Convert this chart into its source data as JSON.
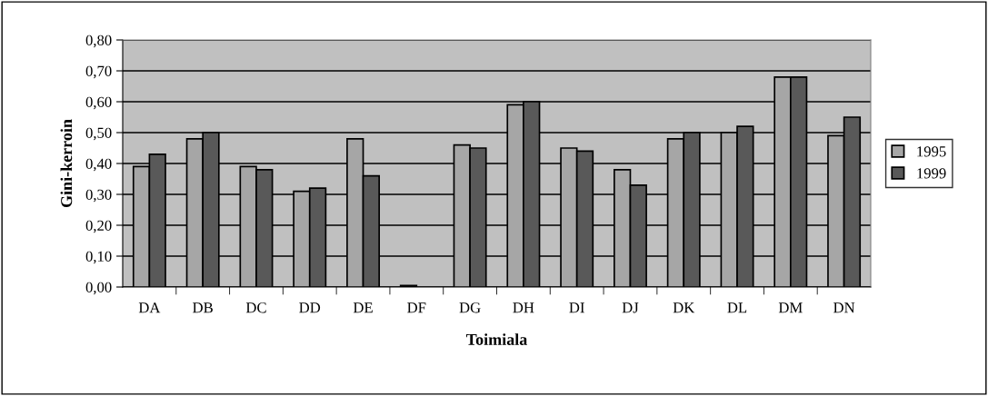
{
  "chart_data": {
    "type": "bar",
    "xlabel": "Toimiala",
    "ylabel": "Gini-kerroin",
    "categories": [
      "DA",
      "DB",
      "DC",
      "DD",
      "DE",
      "DF",
      "DG",
      "DH",
      "DI",
      "DJ",
      "DK",
      "DL",
      "DM",
      "DN"
    ],
    "series": [
      {
        "name": "1995",
        "color": "#a6a6a6",
        "values": [
          0.39,
          0.48,
          0.39,
          0.31,
          0.48,
          0.005,
          0.46,
          0.59,
          0.45,
          0.38,
          0.48,
          0.5,
          0.68,
          0.49
        ]
      },
      {
        "name": "1999",
        "color": "#595959",
        "values": [
          0.43,
          0.5,
          0.38,
          0.32,
          0.36,
          null,
          0.45,
          0.6,
          0.44,
          0.33,
          0.5,
          0.52,
          0.68,
          0.55
        ]
      }
    ],
    "ylim": [
      0,
      0.8
    ],
    "yticks": [
      {
        "value": 0,
        "label": "0,00"
      },
      {
        "value": 0.1,
        "label": "0,10"
      },
      {
        "value": 0.2,
        "label": "0,20"
      },
      {
        "value": 0.3,
        "label": "0,30"
      },
      {
        "value": 0.4,
        "label": "0,40"
      },
      {
        "value": 0.5,
        "label": "0,50"
      },
      {
        "value": 0.6,
        "label": "0,60"
      },
      {
        "value": 0.7,
        "label": "0,70"
      },
      {
        "value": 0.8,
        "label": "0,80"
      }
    ],
    "grid": "y",
    "legend": "right"
  }
}
